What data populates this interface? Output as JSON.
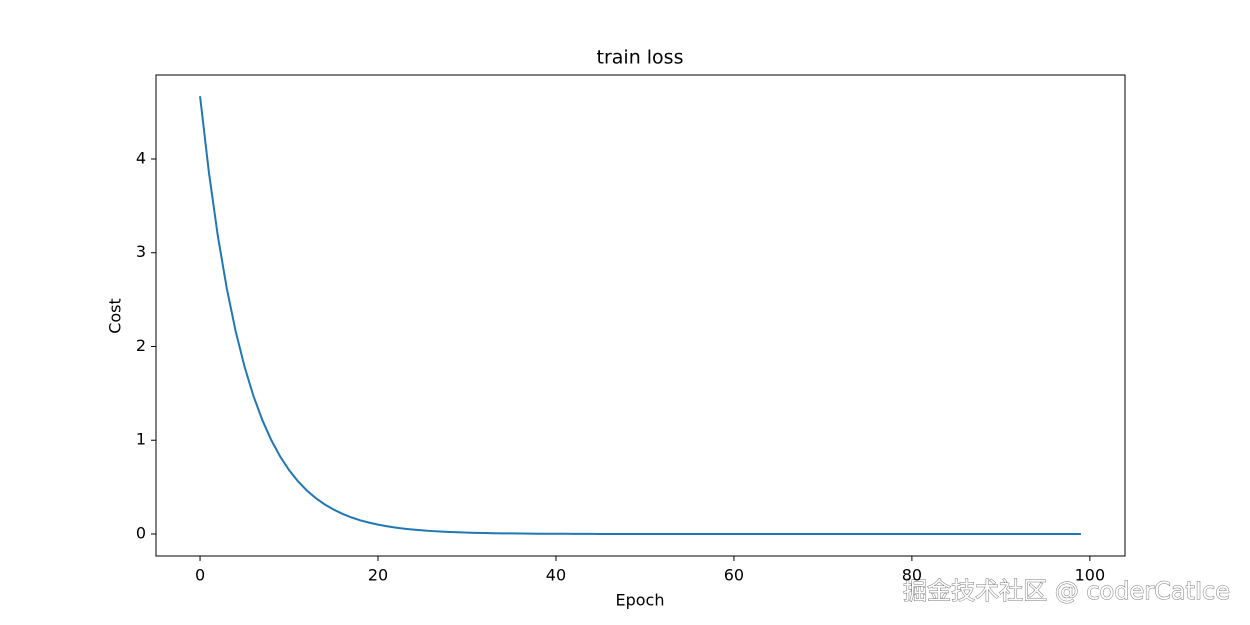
{
  "chart_data": {
    "type": "line",
    "title": "train loss",
    "xlabel": "Epoch",
    "ylabel": "Cost",
    "x": [
      0,
      1,
      2,
      3,
      4,
      5,
      6,
      7,
      8,
      9,
      10,
      11,
      12,
      13,
      14,
      15,
      16,
      17,
      18,
      19,
      20,
      21,
      22,
      23,
      24,
      25,
      26,
      27,
      28,
      29,
      30,
      31,
      32,
      33,
      34,
      35,
      36,
      37,
      38,
      39,
      40,
      41,
      42,
      43,
      44,
      45,
      46,
      47,
      48,
      49,
      50,
      51,
      52,
      53,
      54,
      55,
      56,
      57,
      58,
      59,
      60,
      61,
      62,
      63,
      64,
      65,
      66,
      67,
      68,
      69,
      70,
      71,
      72,
      73,
      74,
      75,
      76,
      77,
      78,
      79,
      80,
      81,
      82,
      83,
      84,
      85,
      86,
      87,
      88,
      89,
      90,
      91,
      92,
      93,
      94,
      95,
      96,
      97,
      98,
      99
    ],
    "series": [
      {
        "color": "#1f77b4",
        "values": [
          4.67,
          3.853,
          3.179,
          2.622,
          2.163,
          1.785,
          1.472,
          1.215,
          1.002,
          0.827,
          0.682,
          0.563,
          0.464,
          0.383,
          0.316,
          0.261,
          0.215,
          0.177,
          0.146,
          0.121,
          0.1,
          0.082,
          0.068,
          0.056,
          0.046,
          0.038,
          0.031,
          0.026,
          0.021,
          0.018,
          0.015,
          0.012,
          0.01,
          0.008,
          0.007,
          0.006,
          0.005,
          0.004,
          0.003,
          0.003,
          0.002,
          0.002,
          0.001,
          0.001,
          0.001,
          0,
          0,
          0,
          0,
          0,
          0,
          0,
          0,
          0,
          0,
          0,
          0,
          0,
          0,
          0,
          0,
          0,
          0,
          0,
          0,
          0,
          0,
          0,
          0,
          0,
          0,
          0,
          0,
          0,
          0,
          0,
          0,
          0,
          0,
          0,
          0,
          0,
          0,
          0,
          0,
          0,
          0,
          0,
          0,
          0,
          0,
          0,
          0,
          0,
          0,
          0,
          0,
          0,
          0,
          0
        ]
      }
    ],
    "xlim": [
      -4.95,
      103.95
    ],
    "xticks": [
      0,
      20,
      40,
      60,
      80,
      100
    ],
    "ylim": [
      -0.235,
      4.896
    ],
    "yticks": [
      0,
      1,
      2,
      3,
      4
    ],
    "grid": false
  },
  "watermark": "掘金技术社区 @ coderCatIce"
}
